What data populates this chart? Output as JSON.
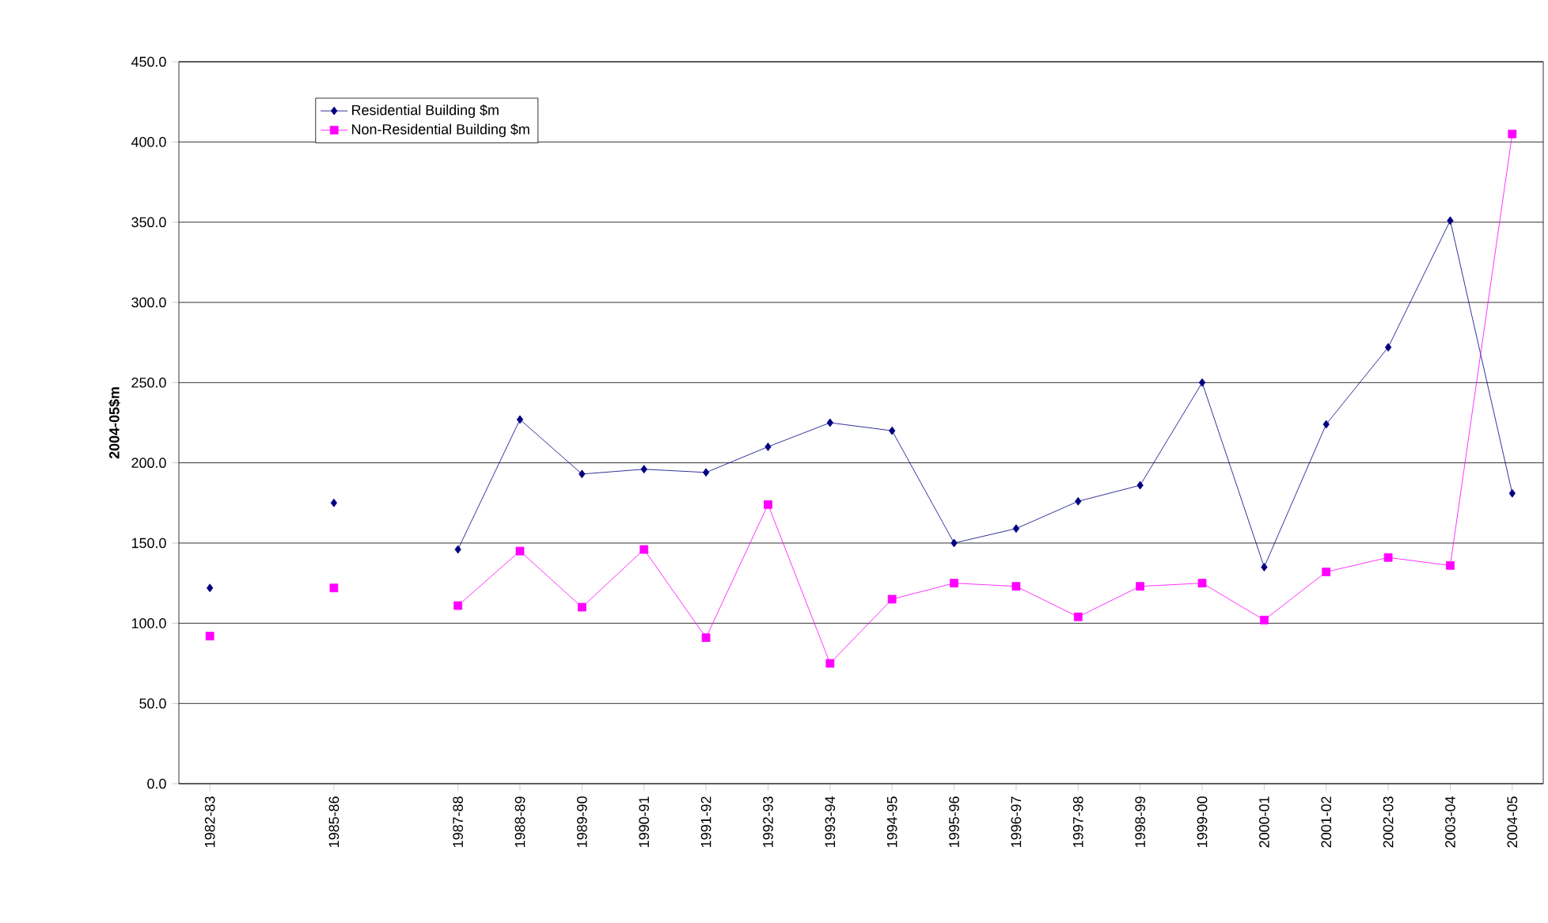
{
  "chart_data": {
    "type": "line",
    "ylabel": "2004-05$m",
    "categories": [
      "1982-83",
      null,
      "1985-86",
      null,
      "1987-88",
      "1988-89",
      "1989-90",
      "1990-91",
      "1991-92",
      "1992-93",
      "1993-94",
      "1994-95",
      "1995-96",
      "1996-97",
      "1997-98",
      "1998-99",
      "1999-00",
      "2000-01",
      "2001-02",
      "2002-03",
      "2003-04",
      "2004-05"
    ],
    "series": [
      {
        "name": "Residential Building $m",
        "color": "#000080",
        "marker": "diamond",
        "values": [
          122,
          null,
          175,
          null,
          146,
          227,
          193,
          196,
          194,
          210,
          225,
          220,
          150,
          159,
          176,
          186,
          250,
          135,
          224,
          272,
          351,
          181
        ]
      },
      {
        "name": "Non-Residential Building $m",
        "color": "#ff00ff",
        "marker": "square",
        "values": [
          92,
          null,
          122,
          null,
          111,
          145,
          110,
          146,
          91,
          174,
          75,
          115,
          125,
          123,
          104,
          123,
          125,
          102,
          132,
          141,
          136,
          405
        ]
      }
    ],
    "ylim": [
      0,
      450
    ],
    "yticks": [
      {
        "value": 0,
        "label": "0.0"
      },
      {
        "value": 50,
        "label": "50.0"
      },
      {
        "value": 100,
        "label": "100.0"
      },
      {
        "value": 150,
        "label": "150.0"
      },
      {
        "value": 200,
        "label": "200.0"
      },
      {
        "value": 250,
        "label": "250.0"
      },
      {
        "value": 300,
        "label": "300.0"
      },
      {
        "value": 350,
        "label": "350.0"
      },
      {
        "value": 400,
        "label": "400.0"
      },
      {
        "value": 450,
        "label": "450.0"
      }
    ],
    "grid": "y",
    "legend": "top left"
  }
}
